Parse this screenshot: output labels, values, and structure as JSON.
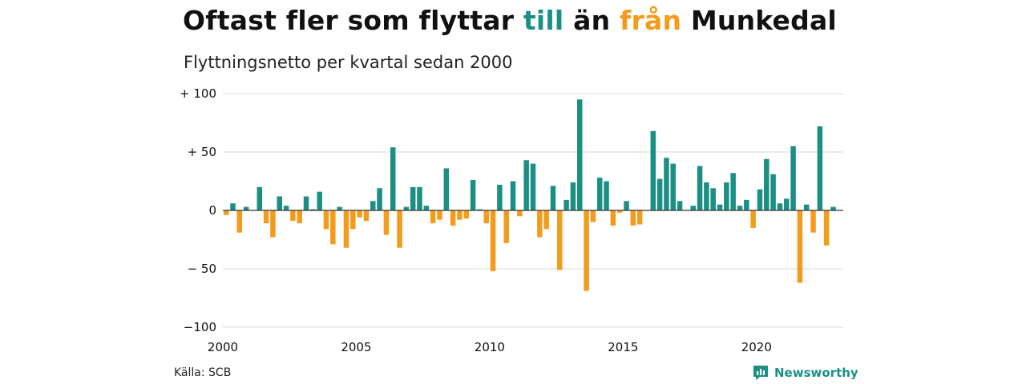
{
  "header": {
    "title_parts": {
      "a": "Oftast fler som flyttar ",
      "b": "till",
      "c": " än ",
      "d": "från",
      "e": " Munkedal"
    },
    "subtitle": "Flyttningsnetto per kvartal sedan 2000"
  },
  "footer": {
    "source": "Källa: SCB",
    "brand": "Newsworthy"
  },
  "colors": {
    "positive": "#1b8f84",
    "negative": "#f39c1c",
    "grid": "#d9d9d9",
    "zero": "#333333"
  },
  "chart_data": {
    "type": "bar",
    "title": "Oftast fler som flyttar till än från Munkedal",
    "subtitle": "Flyttningsnetto per kvartal sedan 2000",
    "xlabel": "",
    "ylabel": "",
    "ylim": [
      -100,
      100
    ],
    "xlim": [
      2000,
      2023.25
    ],
    "yticks": [
      100,
      50,
      0,
      -50,
      -100
    ],
    "ytick_labels": [
      "+ 100",
      "+  50",
      "0",
      "− 50",
      "−100"
    ],
    "xticks": [
      2000,
      2005,
      2010,
      2015,
      2020
    ],
    "xtick_labels": [
      "2000",
      "2005",
      "2010",
      "2015",
      "2020"
    ],
    "grid": true,
    "legend": "none",
    "start": "2000 Q1",
    "frequency": "quarterly",
    "values": [
      -4,
      6,
      -19,
      3,
      0,
      20,
      -11,
      -23,
      12,
      4,
      -9,
      -11,
      12,
      1,
      16,
      -16,
      -29,
      3,
      -32,
      -16,
      -6,
      -9,
      8,
      19,
      -21,
      54,
      -32,
      3,
      20,
      20,
      4,
      -11,
      -8,
      36,
      -13,
      -8,
      -7,
      26,
      1,
      -11,
      -52,
      22,
      -28,
      25,
      -5,
      43,
      40,
      -23,
      -16,
      21,
      -51,
      9,
      24,
      95,
      -69,
      -10,
      28,
      25,
      -13,
      -2,
      8,
      -13,
      -12,
      0,
      68,
      27,
      45,
      40,
      8,
      0,
      4,
      38,
      24,
      19,
      5,
      24,
      32,
      4,
      9,
      -15,
      18,
      44,
      31,
      6,
      10,
      55,
      -62,
      5,
      -19,
      72,
      -30,
      3
    ]
  }
}
